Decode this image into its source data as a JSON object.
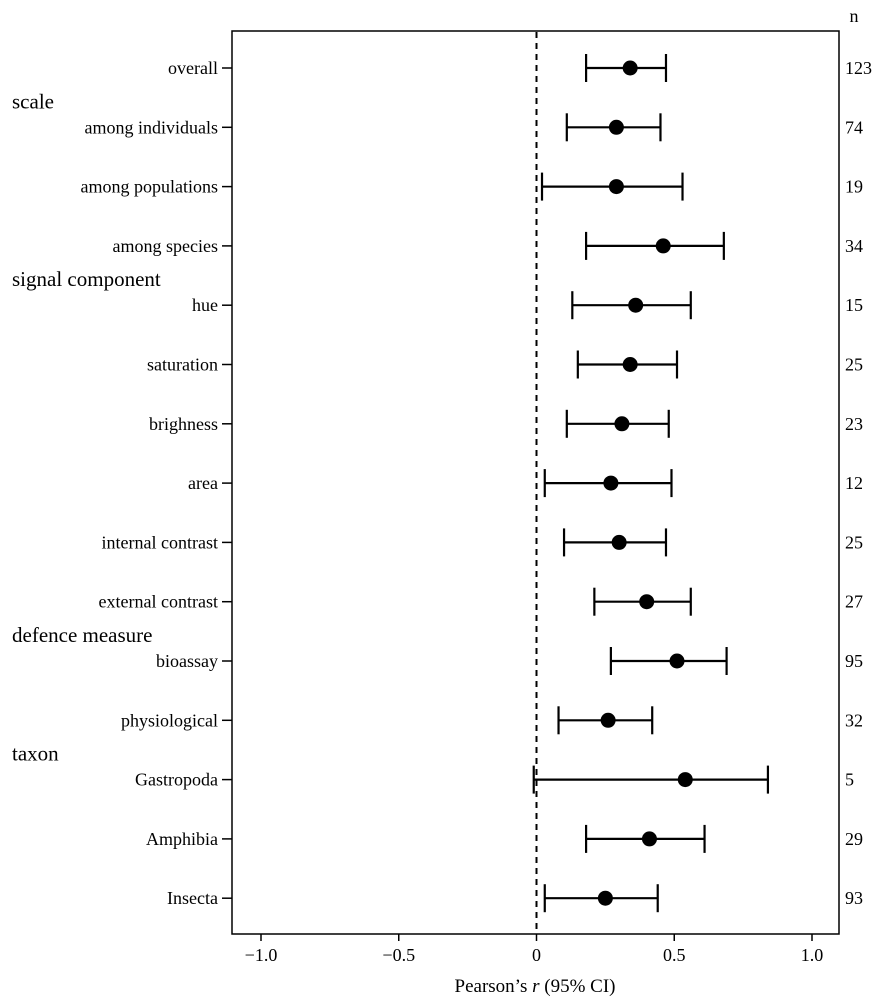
{
  "chart_data": {
    "type": "scatter",
    "subtype": "forest-plot",
    "xlabel_prefix": "Pearson’s ",
    "xlabel_italic": "r",
    "xlabel_suffix": " (95% CI)",
    "xlim": [
      -1.0,
      1.0
    ],
    "xticks": [
      {
        "value": -1.0,
        "label": "−1.0"
      },
      {
        "value": -0.5,
        "label": "−0.5"
      },
      {
        "value": 0,
        "label": "0"
      },
      {
        "value": 0.5,
        "label": "0.5"
      },
      {
        "value": 1.0,
        "label": "1.0"
      }
    ],
    "reference_line": 0,
    "n_header": "n",
    "groups": [
      {
        "label": "scale",
        "before_row": 1
      },
      {
        "label": "signal component",
        "before_row": 4
      },
      {
        "label": "defence measure",
        "before_row": 10
      },
      {
        "label": "taxon",
        "before_row": 12
      }
    ],
    "rows": [
      {
        "label": "overall",
        "estimate": 0.34,
        "lower": 0.18,
        "upper": 0.47,
        "n": "123"
      },
      {
        "label": "among individuals",
        "estimate": 0.29,
        "lower": 0.11,
        "upper": 0.45,
        "n": "74"
      },
      {
        "label": "among populations",
        "estimate": 0.29,
        "lower": 0.02,
        "upper": 0.53,
        "n": "19"
      },
      {
        "label": "among species",
        "estimate": 0.46,
        "lower": 0.18,
        "upper": 0.68,
        "n": "34"
      },
      {
        "label": "hue",
        "estimate": 0.36,
        "lower": 0.13,
        "upper": 0.56,
        "n": "15"
      },
      {
        "label": "saturation",
        "estimate": 0.34,
        "lower": 0.15,
        "upper": 0.51,
        "n": "25"
      },
      {
        "label": "brighness",
        "estimate": 0.31,
        "lower": 0.11,
        "upper": 0.48,
        "n": "23"
      },
      {
        "label": "area",
        "estimate": 0.27,
        "lower": 0.03,
        "upper": 0.49,
        "n": "12"
      },
      {
        "label": "internal contrast",
        "estimate": 0.3,
        "lower": 0.1,
        "upper": 0.47,
        "n": "25"
      },
      {
        "label": "external contrast",
        "estimate": 0.4,
        "lower": 0.21,
        "upper": 0.56,
        "n": "27"
      },
      {
        "label": "bioassay",
        "estimate": 0.51,
        "lower": 0.27,
        "upper": 0.69,
        "n": "95"
      },
      {
        "label": "physiological",
        "estimate": 0.26,
        "lower": 0.08,
        "upper": 0.42,
        "n": "32"
      },
      {
        "label": "Gastropoda",
        "estimate": 0.54,
        "lower": -0.01,
        "upper": 0.84,
        "n": "5"
      },
      {
        "label": "Amphibia",
        "estimate": 0.41,
        "lower": 0.18,
        "upper": 0.61,
        "n": "29"
      },
      {
        "label": "Insecta",
        "estimate": 0.25,
        "lower": 0.03,
        "upper": 0.44,
        "n": "93"
      }
    ]
  }
}
